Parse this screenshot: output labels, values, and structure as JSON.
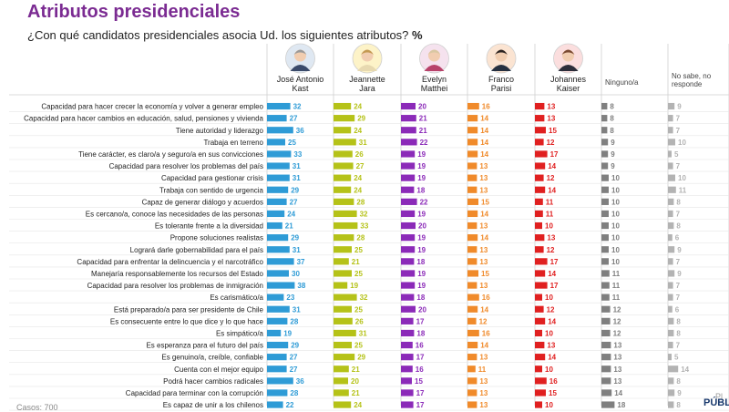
{
  "title": "Atributos presidenciales",
  "subtitle": "¿Con qué candidatos presidenciales asocia Ud. los siguientes atributos?",
  "subtitle_unit": "%",
  "footer_left": "Casos: 700",
  "footer_right": "PÚBL",
  "footer_partial": "Pl",
  "chart_data": {
    "type": "bar",
    "categories": [
      "Capacidad para hacer crecer la economía y volver a generar empleo",
      "Capacidad para hacer cambios en educación, salud, pensiones y vivienda",
      "Tiene autoridad y liderazgo",
      "Trabaja en terreno",
      "Tiene carácter, es claro/a y seguro/a en sus convicciones",
      "Capacidad para resolver los problemas del país",
      "Capacidad para gestionar crisis",
      "Trabaja con sentido de urgencia",
      "Capaz de generar diálogo y acuerdos",
      "Es cercano/a, conoce las necesidades de las personas",
      "Es tolerante frente a la diversidad",
      "Propone soluciones realistas",
      "Logrará darle gobernabilidad para el país",
      "Capacidad para enfrentar la delincuencia y el narcotráfico",
      "Manejaría responsablemente los recursos del Estado",
      "Capacidad para resolver los problemas de inmigración",
      "Es carismático/a",
      "Está preparado/a para ser presidente de Chile",
      "Es consecuente entre lo que dice y lo que hace",
      "Es simpático/a",
      "Es esperanza para el futuro del país",
      "Es genuino/a, creíble, confiable",
      "Cuenta con el mejor equipo",
      "Podrá hacer cambios radicales",
      "Capacidad para terminar con la corrupción",
      "Es capaz de unir a los chilenos"
    ],
    "series": [
      {
        "name": "José Antonio Kast",
        "color": "#2e9bd6",
        "values": [
          32,
          27,
          36,
          25,
          33,
          31,
          31,
          29,
          27,
          24,
          21,
          29,
          31,
          37,
          30,
          38,
          23,
          31,
          28,
          19,
          29,
          27,
          27,
          36,
          28,
          22
        ]
      },
      {
        "name": "Jeannette Jara",
        "color": "#b5c218",
        "values": [
          24,
          29,
          24,
          31,
          26,
          27,
          24,
          24,
          28,
          32,
          33,
          28,
          25,
          21,
          25,
          19,
          32,
          25,
          26,
          31,
          25,
          29,
          21,
          20,
          21,
          24
        ]
      },
      {
        "name": "Evelyn Matthei",
        "color": "#8b2ab8",
        "values": [
          20,
          21,
          21,
          22,
          19,
          19,
          19,
          18,
          22,
          19,
          20,
          19,
          19,
          18,
          19,
          19,
          18,
          20,
          17,
          18,
          16,
          17,
          16,
          15,
          17,
          17
        ]
      },
      {
        "name": "Franco Parisi",
        "color": "#f08a2a",
        "values": [
          16,
          14,
          14,
          14,
          14,
          13,
          13,
          13,
          15,
          14,
          13,
          14,
          13,
          13,
          15,
          13,
          16,
          14,
          12,
          16,
          14,
          13,
          11,
          13,
          13,
          13
        ]
      },
      {
        "name": "Johannes Kaiser",
        "color": "#e02020",
        "values": [
          13,
          13,
          15,
          12,
          17,
          14,
          12,
          14,
          11,
          11,
          10,
          13,
          12,
          17,
          14,
          17,
          10,
          12,
          14,
          10,
          13,
          14,
          10,
          16,
          15,
          10
        ]
      },
      {
        "name": "Ninguno/a",
        "color": "#7f7f7f",
        "values": [
          8,
          8,
          8,
          9,
          9,
          9,
          10,
          10,
          10,
          10,
          10,
          10,
          10,
          10,
          11,
          11,
          11,
          12,
          12,
          12,
          13,
          13,
          13,
          13,
          14,
          18
        ]
      },
      {
        "name": "No sabe, no responde",
        "color": "#b3b3b3",
        "values": [
          9,
          7,
          7,
          10,
          5,
          7,
          10,
          11,
          8,
          7,
          8,
          6,
          9,
          7,
          9,
          7,
          7,
          6,
          8,
          8,
          7,
          5,
          14,
          8,
          9,
          8
        ]
      }
    ],
    "columns": [
      {
        "name_lines": [
          "José Antonio",
          "Kast"
        ],
        "photo": true,
        "photo_bg": "#dfe8f2",
        "hair": "#9a9a9a",
        "suit": "#3a4a6a"
      },
      {
        "name_lines": [
          "Jeannette",
          "Jara"
        ],
        "photo": true,
        "photo_bg": "#fdf3c8",
        "hair": "#c49a52",
        "suit": "#e7d9b0"
      },
      {
        "name_lines": [
          "Evelyn",
          "Matthei"
        ],
        "photo": true,
        "photo_bg": "#f5e2ee",
        "hair": "#d9c7a3",
        "suit": "#b8426a"
      },
      {
        "name_lines": [
          "Franco",
          "Parisi"
        ],
        "photo": true,
        "photo_bg": "#fbe4d2",
        "hair": "#2c2422",
        "suit": "#263040"
      },
      {
        "name_lines": [
          "Johannes",
          "Kaiser"
        ],
        "photo": true,
        "photo_bg": "#fbdede",
        "hair": "#7a4a32",
        "suit": "#2d2d3a"
      },
      {
        "name_lines": [
          "Ninguno/a"
        ],
        "photo": false
      },
      {
        "name_lines": [
          "No sabe, no",
          "responde"
        ],
        "photo": false
      }
    ]
  }
}
